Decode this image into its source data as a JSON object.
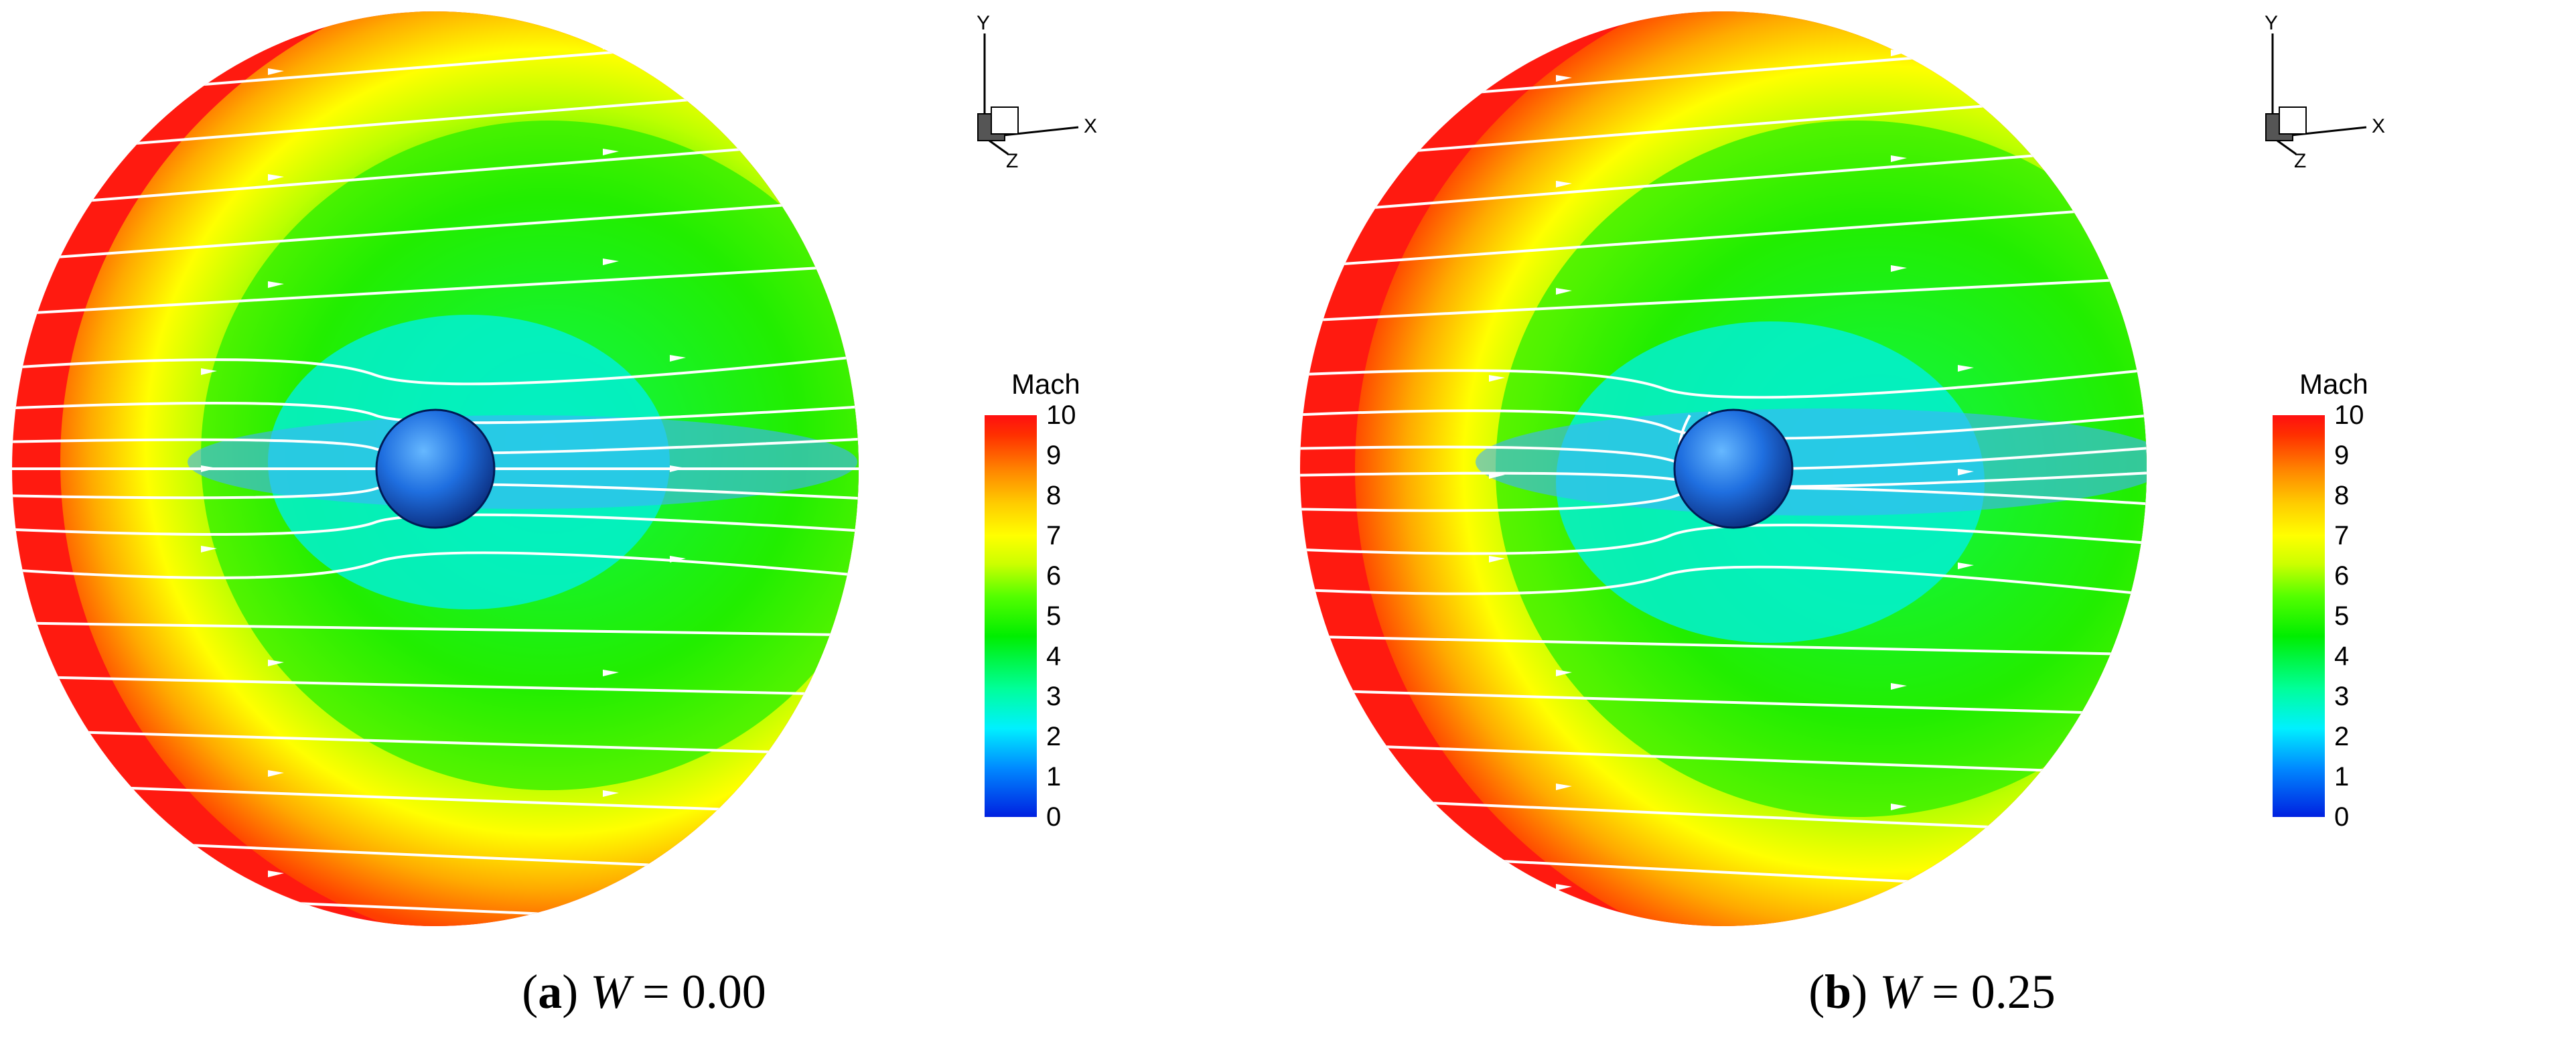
{
  "panels": [
    {
      "id": "a",
      "caption": {
        "open": "(",
        "letter": "a",
        "close": ")",
        "variable": "W",
        "equals": "=",
        "value": "0.00"
      }
    },
    {
      "id": "b",
      "caption": {
        "open": "(",
        "letter": "b",
        "close": ")",
        "variable": "W",
        "equals": "=",
        "value": "0.25"
      }
    }
  ],
  "legend": {
    "title": "Mach",
    "ticks": [
      "10",
      "9",
      "8",
      "7",
      "6",
      "5",
      "4",
      "3",
      "2",
      "1",
      "0"
    ],
    "colors": {
      "high": "#ff1010",
      "mid": "#00ee00",
      "low": "#0020e0"
    }
  },
  "axes_triad": {
    "x": "X",
    "y": "Y",
    "z": "Z"
  }
}
